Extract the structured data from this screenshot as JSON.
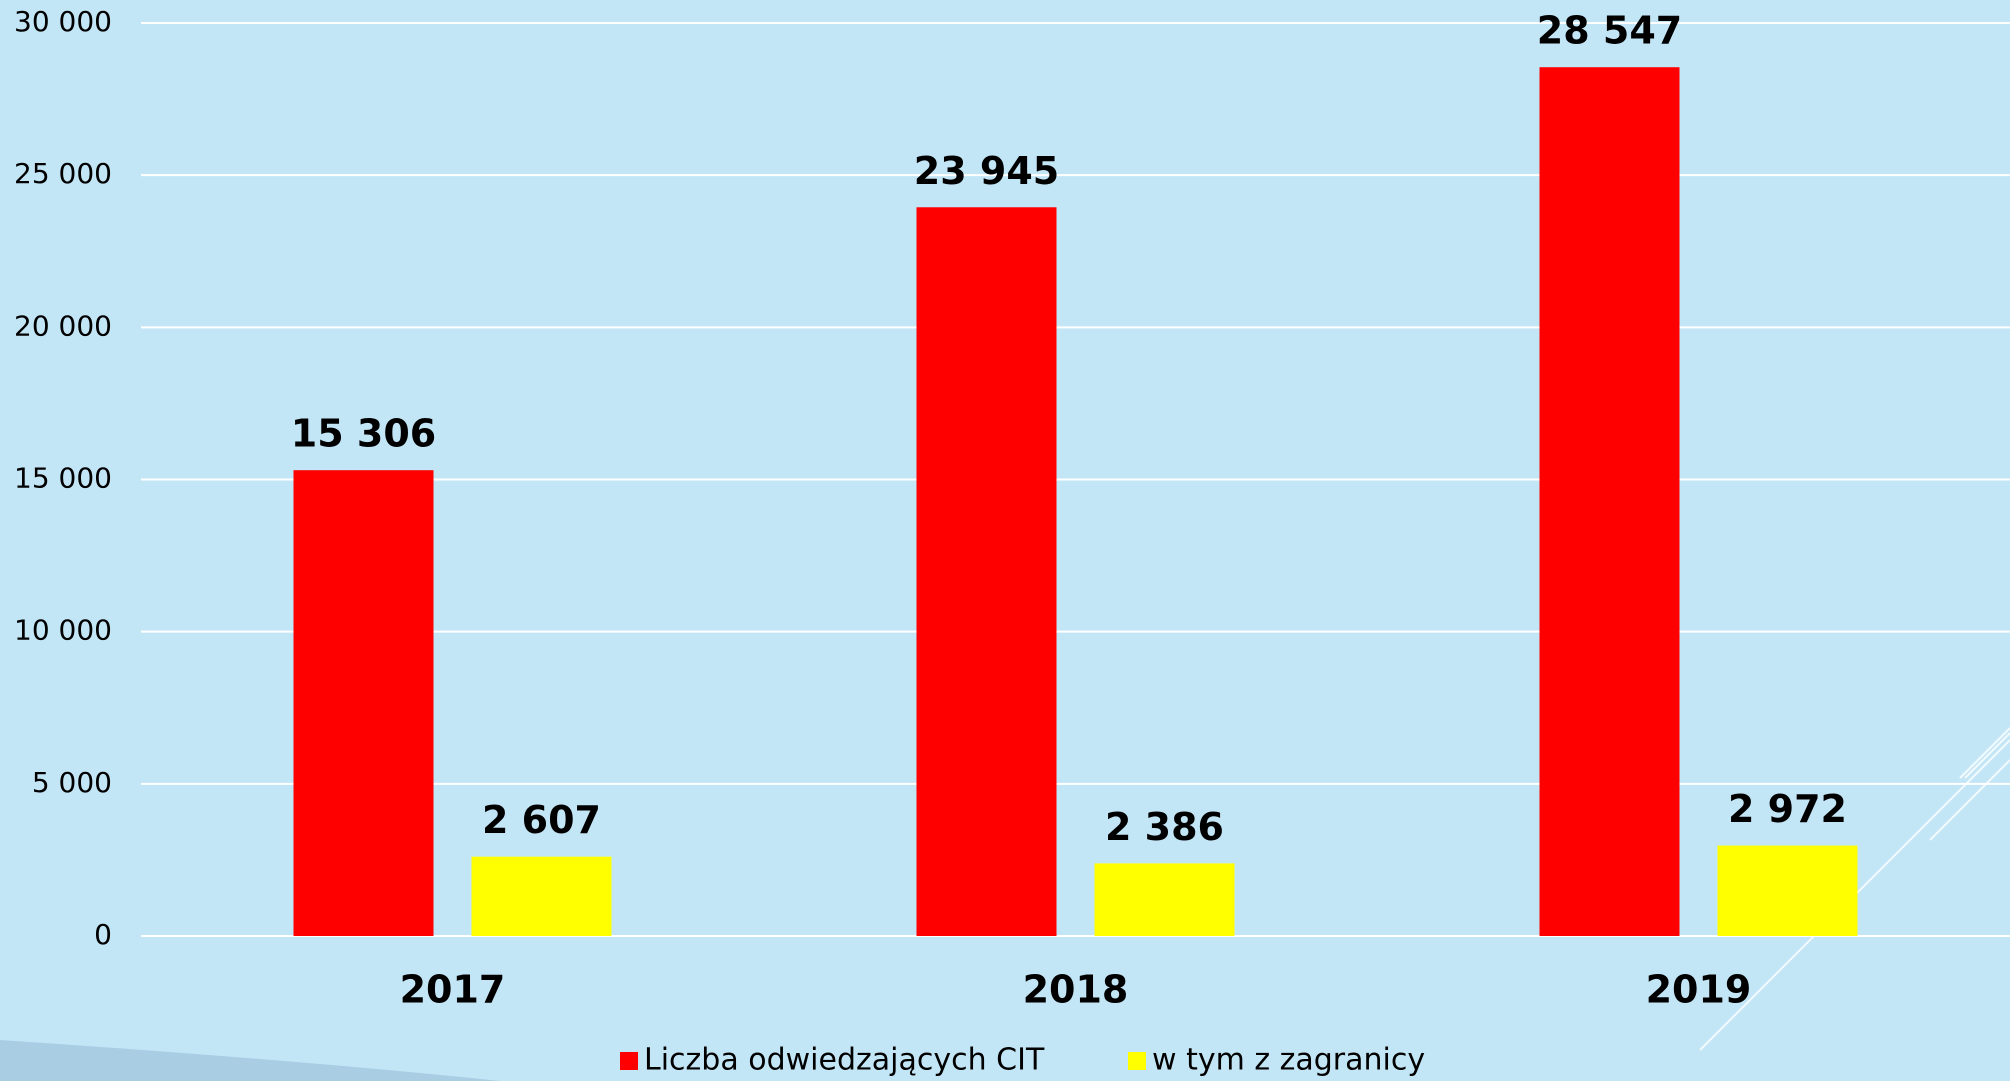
{
  "chart_data": {
    "type": "bar",
    "categories": [
      "2017",
      "2018",
      "2019"
    ],
    "series": [
      {
        "name": "Liczba odwiedzających CIT",
        "color": "#ff0000",
        "values": [
          15306,
          23945,
          28547
        ],
        "value_labels": [
          "15 306",
          "23 945",
          "28 547"
        ]
      },
      {
        "name": "w tym z zagranicy",
        "color": "#ffff00",
        "values": [
          2607,
          2386,
          2972
        ],
        "value_labels": [
          "2 607",
          "2 386",
          "2 972"
        ]
      }
    ],
    "ylim": [
      0,
      30000
    ],
    "yticks": [
      0,
      {
        "value": 5000,
        "label": "5 000"
      },
      {
        "value": 10000,
        "label": "10 000"
      },
      {
        "value": 15000,
        "label": "15 000"
      },
      {
        "value": 20000,
        "label": "20 000"
      },
      {
        "value": 25000,
        "label": "25 000"
      },
      {
        "value": 30000,
        "label": "30 000"
      }
    ],
    "grid": true,
    "legend": "bottom"
  }
}
